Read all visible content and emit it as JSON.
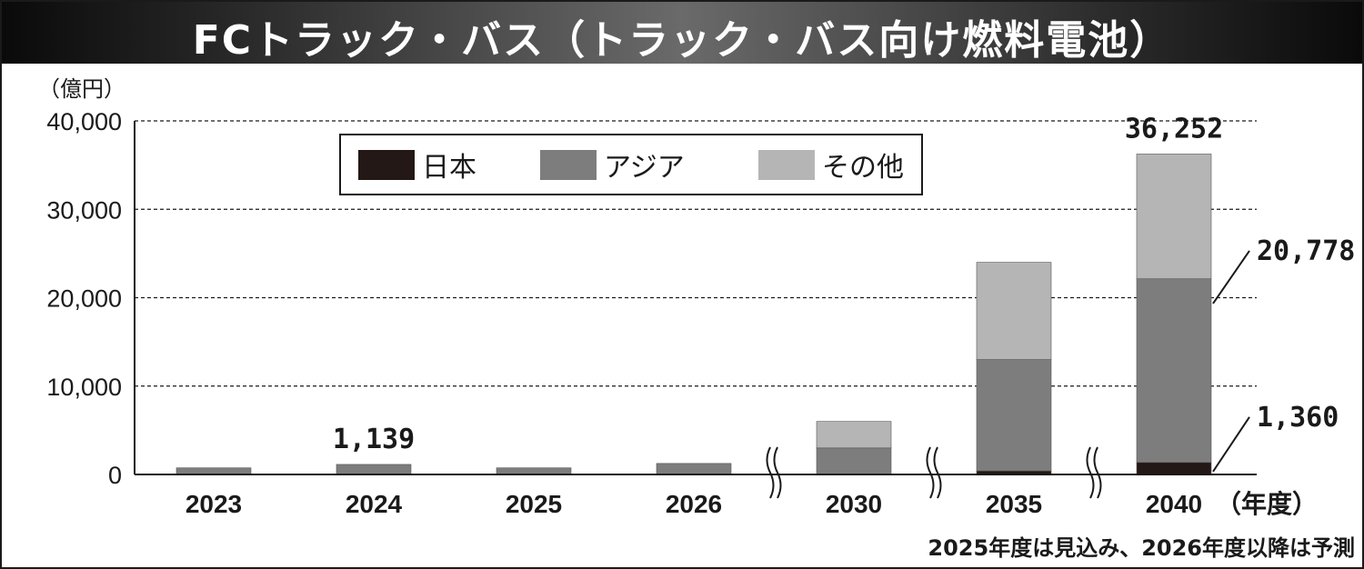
{
  "chart_data": {
    "type": "bar",
    "stacked": true,
    "title": "FCトラック・バス（トラック・バス向け燃料電池）",
    "ylabel": "（億円）",
    "xlabel": "（年度）",
    "ylim": [
      0,
      40000
    ],
    "yticks": [
      "0",
      "10,000",
      "20,000",
      "30,000",
      "40,000"
    ],
    "grid": true,
    "legend_position": "top-center",
    "categories": [
      "2023",
      "2024",
      "2025",
      "2026",
      "2030",
      "2035",
      "2040"
    ],
    "axis_breaks_before": [
      "2030",
      "2035",
      "2040"
    ],
    "series": [
      {
        "name": "日本",
        "color": "#231815",
        "values": [
          0,
          0,
          0,
          0,
          0,
          400,
          1360
        ]
      },
      {
        "name": "アジア",
        "color": "#7d7d7d",
        "values": [
          750,
          1139,
          750,
          1250,
          3000,
          12600,
          20778
        ]
      },
      {
        "name": "その他",
        "color": "#b5b5b5",
        "values": [
          0,
          0,
          0,
          0,
          3000,
          11000,
          14114
        ]
      }
    ],
    "data_labels": [
      {
        "text": "1,139",
        "category": "2024",
        "value": 1139
      },
      {
        "text": "36,252",
        "category": "2040",
        "value": 36252
      },
      {
        "text": "20,778",
        "category": "2040",
        "value": 20778,
        "callout": "right"
      },
      {
        "text": "1,360",
        "category": "2040",
        "value": 1360,
        "callout": "right"
      }
    ],
    "note": "2025年度は見込み、2026年度以降は予測"
  }
}
